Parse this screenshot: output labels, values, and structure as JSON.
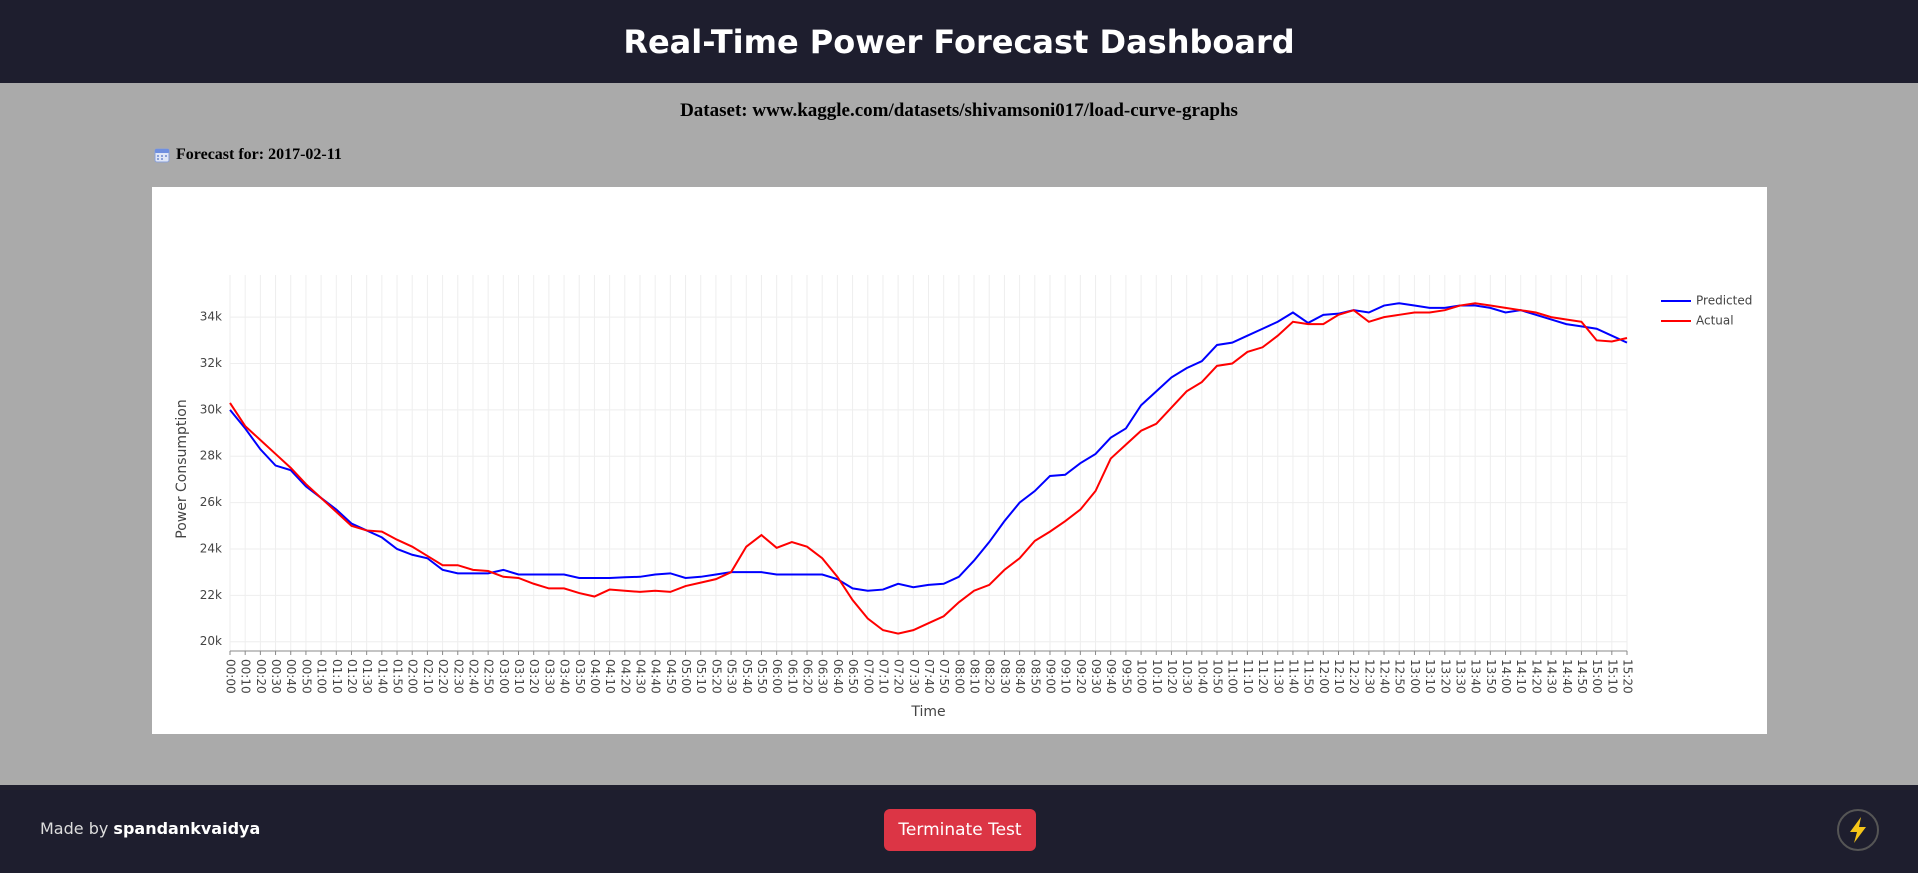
{
  "header": {
    "title": "Real-Time Power Forecast Dashboard"
  },
  "dataset": "Dataset: www.kaggle.com/datasets/shivamsoni017/load-curve-graphs",
  "forecast_label": "Forecast for: 2017-02-11",
  "chart_data": {
    "type": "line",
    "x_label": "Time",
    "y_label": "Power Consumption",
    "categories": [
      "00:00",
      "00:10",
      "00:20",
      "00:30",
      "00:40",
      "00:50",
      "01:00",
      "01:10",
      "01:20",
      "01:30",
      "01:40",
      "01:50",
      "02:00",
      "02:10",
      "02:20",
      "02:30",
      "02:40",
      "02:50",
      "03:00",
      "03:10",
      "03:20",
      "03:30",
      "03:40",
      "03:50",
      "04:00",
      "04:10",
      "04:20",
      "04:30",
      "04:40",
      "04:50",
      "05:00",
      "05:10",
      "05:20",
      "05:30",
      "05:40",
      "05:50",
      "06:00",
      "06:10",
      "06:20",
      "06:30",
      "06:40",
      "06:50",
      "07:00",
      "07:10",
      "07:20",
      "07:30",
      "07:40",
      "07:50",
      "08:00",
      "08:10",
      "08:20",
      "08:30",
      "08:40",
      "08:50",
      "09:00",
      "09:10",
      "09:20",
      "09:30",
      "09:40",
      "09:50",
      "10:00",
      "10:10",
      "10:20",
      "10:30",
      "10:40",
      "10:50",
      "11:00",
      "11:10",
      "11:20",
      "11:30",
      "11:40",
      "11:50",
      "12:00",
      "12:10",
      "12:20",
      "12:30",
      "12:40",
      "12:50",
      "13:00",
      "13:10",
      "13:20",
      "13:30",
      "13:40",
      "13:50",
      "14:00",
      "14:10",
      "14:20",
      "14:30",
      "14:40",
      "14:50",
      "15:00",
      "15:10",
      "15:20"
    ],
    "series": [
      {
        "name": "Predicted",
        "color": "#0000ff",
        "values": [
          30000,
          29200,
          28300,
          27600,
          27400,
          26700,
          26200,
          25700,
          25100,
          24800,
          24500,
          24000,
          23750,
          23600,
          23100,
          22950,
          22950,
          22950,
          23100,
          22900,
          22900,
          22900,
          22900,
          22750,
          22750,
          22750,
          22780,
          22800,
          22900,
          22950,
          22750,
          22800,
          22900,
          23000,
          23000,
          23000,
          22900,
          22900,
          22900,
          22900,
          22700,
          22300,
          22200,
          22250,
          22500,
          22350,
          22450,
          22500,
          22800,
          23500,
          24300,
          25200,
          26000,
          26500,
          27150,
          27200,
          27700,
          28100,
          28800,
          29200,
          30200,
          30800,
          31400,
          31800,
          32100,
          32800,
          32900,
          33200,
          33500,
          33800,
          34200,
          33750,
          34100,
          34150,
          34300,
          34200,
          34500,
          34600,
          34500,
          34400,
          34400,
          34500,
          34500,
          34400,
          34200,
          34300,
          34100,
          33900,
          33700,
          33600,
          33500,
          33200,
          32900
        ]
      },
      {
        "name": "Actual",
        "color": "#ff0000",
        "values": [
          30300,
          29300,
          28700,
          28100,
          27500,
          26800,
          26200,
          25600,
          25000,
          24800,
          24750,
          24400,
          24100,
          23700,
          23300,
          23300,
          23100,
          23050,
          22800,
          22750,
          22500,
          22300,
          22300,
          22100,
          21950,
          22250,
          22200,
          22150,
          22200,
          22150,
          22400,
          22550,
          22700,
          23000,
          24100,
          24600,
          24050,
          24300,
          24100,
          23600,
          22800,
          21800,
          21000,
          20500,
          20350,
          20500,
          20800,
          21100,
          21700,
          22200,
          22450,
          23100,
          23600,
          24350,
          24750,
          25200,
          25700,
          26500,
          27900,
          28500,
          29100,
          29400,
          30100,
          30800,
          31200,
          31900,
          32000,
          32500,
          32700,
          33200,
          33800,
          33700,
          33700,
          34100,
          34300,
          33800,
          34000,
          34100,
          34200,
          34200,
          34300,
          34500,
          34600,
          34500,
          34400,
          34300,
          34200,
          34000,
          33900,
          33800,
          33000,
          32950,
          33100
        ]
      }
    ],
    "ylim": [
      19600,
      35300
    ],
    "yticks": [
      {
        "value": 20000,
        "label": "20k"
      },
      {
        "value": 22000,
        "label": "22k"
      },
      {
        "value": 24000,
        "label": "24k"
      },
      {
        "value": 26000,
        "label": "26k"
      },
      {
        "value": 28000,
        "label": "28k"
      },
      {
        "value": 30000,
        "label": "30k"
      },
      {
        "value": 32000,
        "label": "32k"
      },
      {
        "value": 34000,
        "label": "34k"
      }
    ],
    "grid": true,
    "legend": "top-right"
  },
  "footer": {
    "made_by": "Made by",
    "author": "spandankvaidya",
    "button": "Terminate Test"
  }
}
